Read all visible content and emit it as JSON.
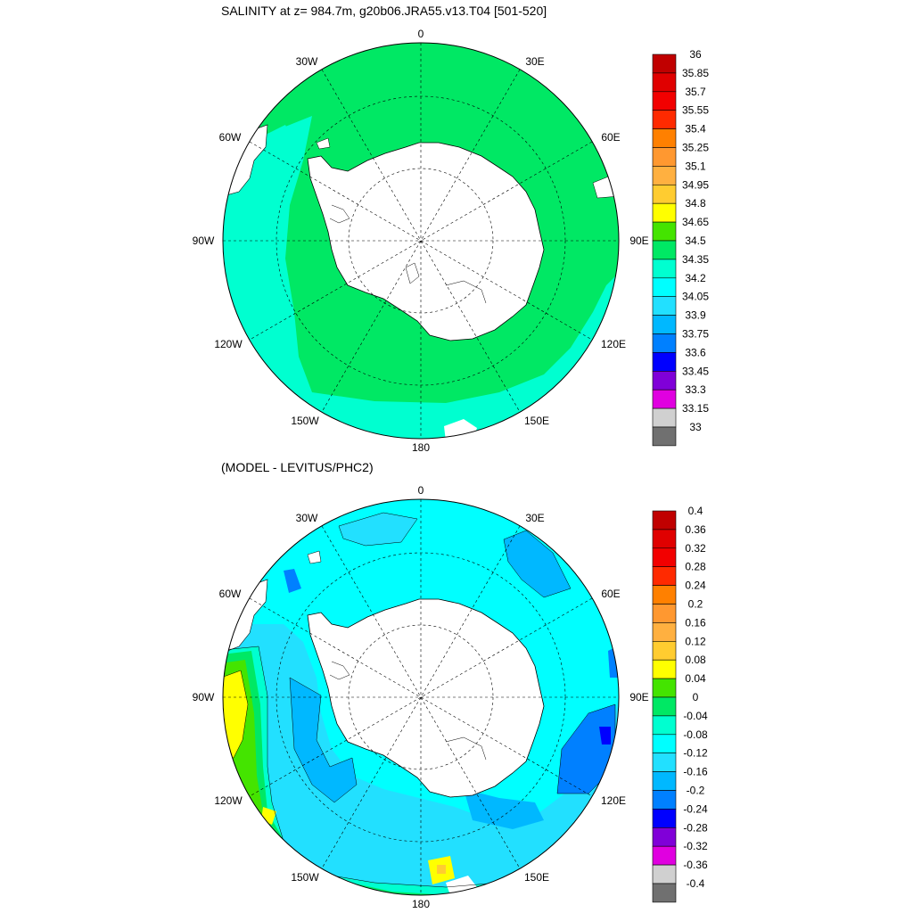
{
  "panels": [
    {
      "title": "SALINITY at z= 984.7m, g20b06.JRA55.v13.T04 [501-520]",
      "colorbar": {
        "labels": [
          "36",
          "35.85",
          "35.7",
          "35.55",
          "35.4",
          "35.25",
          "35.1",
          "34.95",
          "34.8",
          "34.65",
          "34.5",
          "34.35",
          "34.2",
          "34.05",
          "33.9",
          "33.75",
          "33.6",
          "33.45",
          "33.3",
          "33.15",
          "33"
        ],
        "colors": [
          "#c00000",
          "#e00000",
          "#f20000",
          "#ff2a00",
          "#ff8000",
          "#ff9830",
          "#ffb040",
          "#ffcc30",
          "#ffff00",
          "#44e400",
          "#00e864",
          "#00ffd0",
          "#00ffff",
          "#22e0ff",
          "#00b8ff",
          "#0080ff",
          "#0000ff",
          "#8000d8",
          "#e000e0",
          "#d0d0d0",
          "#707070"
        ]
      }
    },
    {
      "title": "(MODEL - LEVITUS/PHC2)",
      "colorbar": {
        "labels": [
          "0.4",
          "0.36",
          "0.32",
          "0.28",
          "0.24",
          "0.2",
          "0.16",
          "0.12",
          "0.08",
          "0.04",
          "0",
          "-0.04",
          "-0.08",
          "-0.12",
          "-0.16",
          "-0.2",
          "-0.24",
          "-0.28",
          "-0.32",
          "-0.36",
          "-0.4"
        ],
        "colors": [
          "#c00000",
          "#e00000",
          "#f20000",
          "#ff2a00",
          "#ff8000",
          "#ff9830",
          "#ffb040",
          "#ffcc30",
          "#ffff00",
          "#44e400",
          "#00e864",
          "#00ffd0",
          "#00ffff",
          "#22e0ff",
          "#00b8ff",
          "#0080ff",
          "#0000ff",
          "#8000d8",
          "#e000e0",
          "#d0d0d0",
          "#707070"
        ]
      }
    }
  ],
  "map_labels": {
    "lon_0": "0",
    "lon_30e": "30E",
    "lon_60e": "60E",
    "lon_90e": "90E",
    "lon_120e": "120E",
    "lon_150e": "150E",
    "lon_180": "180",
    "lon_150w": "150W",
    "lon_120w": "120W",
    "lon_90w": "90W",
    "lon_60w": "60W",
    "lon_30w": "30W"
  }
}
